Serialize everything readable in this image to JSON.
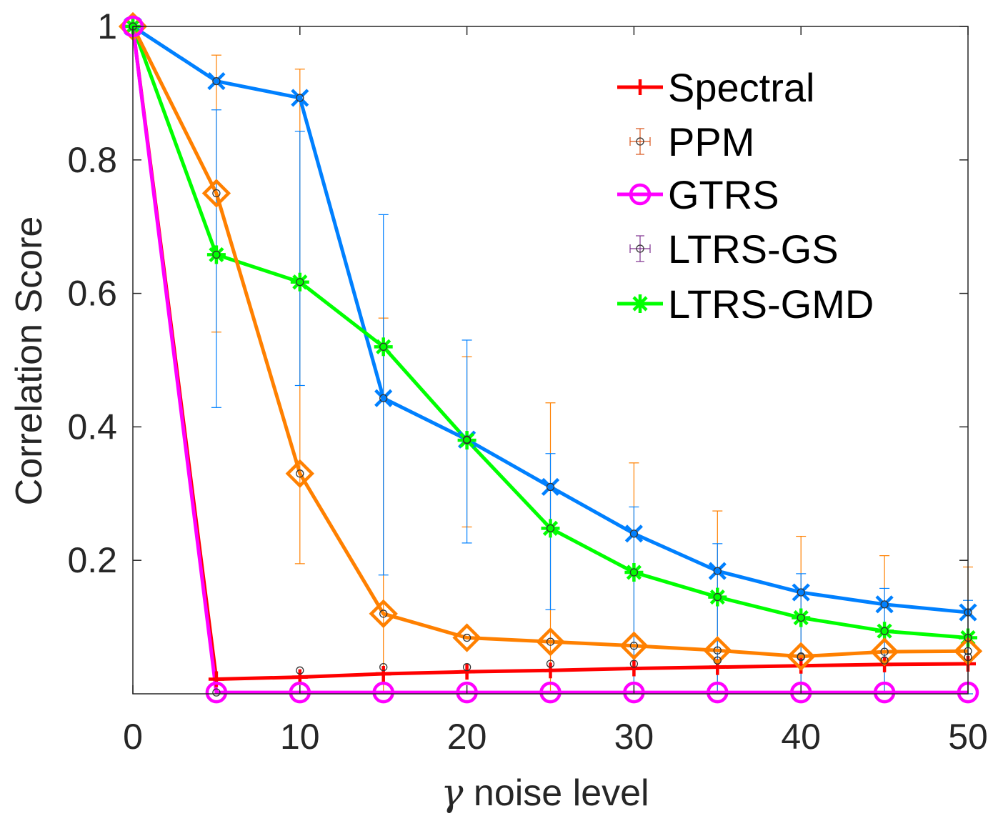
{
  "chart_data": {
    "type": "line",
    "xlabel_symbol": "γ",
    "xlabel_text": " noise level",
    "ylabel": "Correlation Score",
    "xlim": [
      0,
      50
    ],
    "ylim": [
      0,
      1
    ],
    "x_ticks": [
      0,
      10,
      20,
      30,
      40,
      50
    ],
    "y_ticks": [
      0.2,
      0.4,
      0.6,
      0.8,
      1
    ],
    "x_tick_labels": [
      "0",
      "10",
      "20",
      "30",
      "40",
      "50"
    ],
    "y_tick_labels": [
      "0.2",
      "0.4",
      "0.6",
      "0.8",
      "1"
    ],
    "grid": false,
    "legend_position": "top-right",
    "x": [
      0,
      5,
      10,
      15,
      20,
      25,
      30,
      35,
      40,
      45,
      50
    ],
    "series": [
      {
        "name": "Spectral",
        "color": "#ff0000",
        "marker": "plus",
        "values": [
          1.0,
          0.022,
          0.025,
          0.03,
          0.033,
          0.035,
          0.038,
          0.04,
          0.042,
          0.044,
          0.045
        ],
        "err": [
          0,
          0.006,
          0.018,
          0.015,
          0.015,
          0.014,
          0.013,
          0.012,
          0.012,
          0.011,
          0.011
        ]
      },
      {
        "name": "PPM",
        "color": "#d95319",
        "marker": "circle-errorbar",
        "values": [
          1.0,
          0.75,
          0.33,
          0.12,
          0.084,
          0.078,
          0.072,
          0.065,
          0.056,
          0.063,
          0.064
        ],
        "err": [
          0,
          0.0,
          0.06,
          0.06,
          0.045,
          0.05,
          0.05,
          0.03,
          0.03,
          0.025,
          0.03
        ]
      },
      {
        "name": "GTRS",
        "color": "#ff00ff",
        "marker": "circle",
        "values": [
          1.0,
          0.002,
          0.002,
          0.002,
          0.002,
          0.002,
          0.002,
          0.002,
          0.002,
          0.002,
          0.002
        ],
        "err": [
          0,
          0,
          0,
          0,
          0,
          0,
          0,
          0,
          0,
          0,
          0
        ]
      },
      {
        "name": "LTRS-GS",
        "color": "#7e2f8e",
        "marker": "circle-errorbar",
        "values": [
          1.0,
          0.002,
          0.035,
          0.04,
          0.04,
          0.045,
          0.045,
          0.05,
          0.055,
          0.05,
          0.055
        ],
        "err": [
          0,
          0,
          0,
          0,
          0,
          0,
          0,
          0,
          0,
          0,
          0
        ]
      },
      {
        "name": "LTRS-GMD",
        "color": "#00ff00",
        "marker": "asterisk",
        "values": [
          1.0,
          0.658,
          0.617,
          0.52,
          0.38,
          0.248,
          0.182,
          0.145,
          0.114,
          0.094,
          0.084
        ],
        "err": [
          0,
          0,
          0,
          0,
          0,
          0,
          0,
          0,
          0,
          0,
          0
        ]
      },
      {
        "name": "",
        "color": "#ff8000",
        "marker": "diamond",
        "values": [
          1.0,
          0.75,
          0.33,
          0.12,
          0.084,
          0.078,
          0.072,
          0.065,
          0.056,
          0.063,
          0.064
        ],
        "err_upper": [
          0,
          0.957,
          0.936,
          0.563,
          0.505,
          0.436,
          0.346,
          0.274,
          0.236,
          0.207,
          0.19
        ],
        "err_lower": [
          0,
          0.542,
          0.195,
          0.0,
          0.25,
          0.0,
          0.0,
          0.0,
          0.0,
          0.0,
          0.0
        ]
      },
      {
        "name": "",
        "color": "#0080ff",
        "marker": "cross",
        "values": [
          1.0,
          0.918,
          0.893,
          0.443,
          0.381,
          0.31,
          0.24,
          0.184,
          0.152,
          0.134,
          0.122
        ],
        "err_upper": [
          0,
          0.875,
          0.843,
          0.718,
          0.53,
          0.36,
          0.28,
          0.225,
          0.18,
          0.158,
          0.14
        ],
        "err_lower": [
          0,
          0.429,
          0.462,
          0.178,
          0.226,
          0.126,
          0.0,
          0.0,
          0.0,
          0.0,
          0.0
        ]
      }
    ],
    "legend_entries": [
      "Spectral",
      "PPM",
      "GTRS",
      "LTRS-GS",
      "LTRS-GMD"
    ]
  }
}
